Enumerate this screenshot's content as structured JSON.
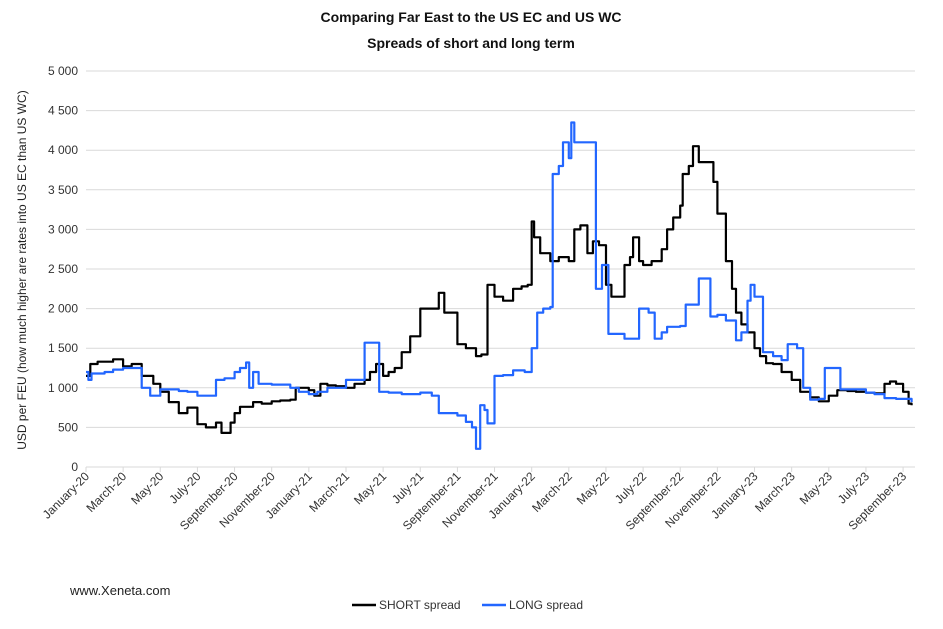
{
  "source": "www.Xeneta.com",
  "chart_data": {
    "type": "line",
    "title": [
      "Comparing Far East to the US EC and US WC",
      "Spreads of short and long term"
    ],
    "ylabel": "USD per FEU (how much higher are rates into US EC than US WC)",
    "xlabel": "",
    "ylim": [
      0,
      5000
    ],
    "yticks": [
      0,
      500,
      1000,
      1500,
      2000,
      2500,
      3000,
      3500,
      4000,
      4500,
      5000
    ],
    "ytick_labels": [
      "0",
      "500",
      "1 000",
      "1 500",
      "2 000",
      "2 500",
      "3 000",
      "3 500",
      "4 000",
      "4 500",
      "5 000"
    ],
    "xtick_labels": [
      "January-20",
      "March-20",
      "May-20",
      "July-20",
      "September-20",
      "November-20",
      "January-21",
      "March-21",
      "May-21",
      "July-21",
      "September-21",
      "November-21",
      "January-22",
      "March-22",
      "May-22",
      "July-22",
      "September-22",
      "November-22",
      "January-23",
      "March-23",
      "May-23",
      "July-23",
      "September-23"
    ],
    "xtick_dates": [
      "2020-01-01",
      "2020-03-01",
      "2020-05-01",
      "2020-07-01",
      "2020-09-01",
      "2020-11-01",
      "2021-01-01",
      "2021-03-01",
      "2021-05-01",
      "2021-07-01",
      "2021-09-01",
      "2021-11-01",
      "2022-01-01",
      "2022-03-01",
      "2022-05-01",
      "2022-07-01",
      "2022-09-01",
      "2022-11-01",
      "2023-01-01",
      "2023-03-01",
      "2023-05-01",
      "2023-07-01",
      "2023-09-01"
    ],
    "grid": true,
    "legend": "bottom",
    "series": [
      {
        "name": "SHORT spread",
        "color": "#000000",
        "points": [
          [
            "2020-01-01",
            1150
          ],
          [
            "2020-01-08",
            1300
          ],
          [
            "2020-01-20",
            1330
          ],
          [
            "2020-02-15",
            1360
          ],
          [
            "2020-03-01",
            1270
          ],
          [
            "2020-03-15",
            1300
          ],
          [
            "2020-04-01",
            1150
          ],
          [
            "2020-04-20",
            1050
          ],
          [
            "2020-05-01",
            950
          ],
          [
            "2020-05-15",
            820
          ],
          [
            "2020-06-01",
            680
          ],
          [
            "2020-06-15",
            750
          ],
          [
            "2020-07-01",
            540
          ],
          [
            "2020-07-15",
            500
          ],
          [
            "2020-08-01",
            560
          ],
          [
            "2020-08-10",
            430
          ],
          [
            "2020-08-25",
            560
          ],
          [
            "2020-09-01",
            680
          ],
          [
            "2020-09-10",
            760
          ],
          [
            "2020-10-01",
            820
          ],
          [
            "2020-10-15",
            800
          ],
          [
            "2020-11-01",
            830
          ],
          [
            "2020-11-15",
            840
          ],
          [
            "2020-12-01",
            850
          ],
          [
            "2020-12-10",
            1000
          ],
          [
            "2021-01-01",
            970
          ],
          [
            "2021-01-10",
            900
          ],
          [
            "2021-01-20",
            1050
          ],
          [
            "2021-02-01",
            1030
          ],
          [
            "2021-02-15",
            1020
          ],
          [
            "2021-03-01",
            1000
          ],
          [
            "2021-03-15",
            1050
          ],
          [
            "2021-04-01",
            1100
          ],
          [
            "2021-04-10",
            1200
          ],
          [
            "2021-04-20",
            1300
          ],
          [
            "2021-05-01",
            1150
          ],
          [
            "2021-05-10",
            1200
          ],
          [
            "2021-05-20",
            1250
          ],
          [
            "2021-06-01",
            1450
          ],
          [
            "2021-06-15",
            1650
          ],
          [
            "2021-07-01",
            2000
          ],
          [
            "2021-07-15",
            2000
          ],
          [
            "2021-08-01",
            2200
          ],
          [
            "2021-08-10",
            1950
          ],
          [
            "2021-08-20",
            1950
          ],
          [
            "2021-09-01",
            1550
          ],
          [
            "2021-09-15",
            1500
          ],
          [
            "2021-10-01",
            1400
          ],
          [
            "2021-10-10",
            1420
          ],
          [
            "2021-10-20",
            2300
          ],
          [
            "2021-11-01",
            2150
          ],
          [
            "2021-11-15",
            2100
          ],
          [
            "2021-12-01",
            2250
          ],
          [
            "2021-12-15",
            2280
          ],
          [
            "2021-12-25",
            2300
          ],
          [
            "2022-01-01",
            3100
          ],
          [
            "2022-01-05",
            2900
          ],
          [
            "2022-01-15",
            2700
          ],
          [
            "2022-02-01",
            2600
          ],
          [
            "2022-02-15",
            2650
          ],
          [
            "2022-03-01",
            2600
          ],
          [
            "2022-03-10",
            3000
          ],
          [
            "2022-03-20",
            3050
          ],
          [
            "2022-04-01",
            2700
          ],
          [
            "2022-04-10",
            2850
          ],
          [
            "2022-04-20",
            2800
          ],
          [
            "2022-05-01",
            2300
          ],
          [
            "2022-05-10",
            2150
          ],
          [
            "2022-05-20",
            2150
          ],
          [
            "2022-06-01",
            2550
          ],
          [
            "2022-06-10",
            2650
          ],
          [
            "2022-06-15",
            2900
          ],
          [
            "2022-06-25",
            2600
          ],
          [
            "2022-07-01",
            2550
          ],
          [
            "2022-07-15",
            2600
          ],
          [
            "2022-08-01",
            2750
          ],
          [
            "2022-08-10",
            3000
          ],
          [
            "2022-08-20",
            3150
          ],
          [
            "2022-09-01",
            3300
          ],
          [
            "2022-09-05",
            3700
          ],
          [
            "2022-09-15",
            3800
          ],
          [
            "2022-09-22",
            4050
          ],
          [
            "2022-10-01",
            3850
          ],
          [
            "2022-10-15",
            3850
          ],
          [
            "2022-10-25",
            3600
          ],
          [
            "2022-11-01",
            3200
          ],
          [
            "2022-11-15",
            2600
          ],
          [
            "2022-11-25",
            2250
          ],
          [
            "2022-12-01",
            1950
          ],
          [
            "2022-12-10",
            1800
          ],
          [
            "2022-12-20",
            1700
          ],
          [
            "2023-01-01",
            1500
          ],
          [
            "2023-01-10",
            1400
          ],
          [
            "2023-01-20",
            1310
          ],
          [
            "2023-02-01",
            1300
          ],
          [
            "2023-02-15",
            1200
          ],
          [
            "2023-03-01",
            1100
          ],
          [
            "2023-03-15",
            950
          ],
          [
            "2023-04-01",
            880
          ],
          [
            "2023-04-15",
            830
          ],
          [
            "2023-05-01",
            900
          ],
          [
            "2023-05-15",
            970
          ],
          [
            "2023-06-01",
            960
          ],
          [
            "2023-06-15",
            950
          ],
          [
            "2023-07-01",
            940
          ],
          [
            "2023-07-15",
            930
          ],
          [
            "2023-08-01",
            1050
          ],
          [
            "2023-08-10",
            1080
          ],
          [
            "2023-08-20",
            1050
          ],
          [
            "2023-09-01",
            950
          ],
          [
            "2023-09-10",
            800
          ],
          [
            "2023-09-15",
            780
          ]
        ]
      },
      {
        "name": "LONG spread",
        "color": "#2266ff",
        "points": [
          [
            "2020-01-01",
            1200
          ],
          [
            "2020-01-05",
            1100
          ],
          [
            "2020-01-10",
            1180
          ],
          [
            "2020-02-01",
            1200
          ],
          [
            "2020-02-15",
            1230
          ],
          [
            "2020-03-01",
            1250
          ],
          [
            "2020-04-01",
            1000
          ],
          [
            "2020-04-15",
            900
          ],
          [
            "2020-05-01",
            980
          ],
          [
            "2020-06-01",
            960
          ],
          [
            "2020-06-15",
            950
          ],
          [
            "2020-07-01",
            900
          ],
          [
            "2020-07-15",
            900
          ],
          [
            "2020-08-01",
            1100
          ],
          [
            "2020-08-15",
            1120
          ],
          [
            "2020-09-01",
            1200
          ],
          [
            "2020-09-10",
            1250
          ],
          [
            "2020-09-20",
            1320
          ],
          [
            "2020-09-25",
            1000
          ],
          [
            "2020-10-01",
            1200
          ],
          [
            "2020-10-10",
            1050
          ],
          [
            "2020-11-01",
            1040
          ],
          [
            "2020-12-01",
            1000
          ],
          [
            "2020-12-15",
            950
          ],
          [
            "2021-01-01",
            920
          ],
          [
            "2021-01-15",
            950
          ],
          [
            "2021-02-01",
            1000
          ],
          [
            "2021-03-01",
            1100
          ],
          [
            "2021-03-15",
            1100
          ],
          [
            "2021-04-01",
            1570
          ],
          [
            "2021-04-25",
            950
          ],
          [
            "2021-05-10",
            940
          ],
          [
            "2021-06-01",
            920
          ],
          [
            "2021-07-01",
            940
          ],
          [
            "2021-07-20",
            900
          ],
          [
            "2021-08-01",
            680
          ],
          [
            "2021-09-01",
            650
          ],
          [
            "2021-09-15",
            570
          ],
          [
            "2021-09-25",
            500
          ],
          [
            "2021-10-01",
            230
          ],
          [
            "2021-10-08",
            780
          ],
          [
            "2021-10-15",
            720
          ],
          [
            "2021-10-20",
            550
          ],
          [
            "2021-11-01",
            1150
          ],
          [
            "2021-11-15",
            1160
          ],
          [
            "2021-12-01",
            1220
          ],
          [
            "2021-12-20",
            1200
          ],
          [
            "2022-01-01",
            1500
          ],
          [
            "2022-01-10",
            1950
          ],
          [
            "2022-01-20",
            2000
          ],
          [
            "2022-02-01",
            2020
          ],
          [
            "2022-02-05",
            3700
          ],
          [
            "2022-02-15",
            3800
          ],
          [
            "2022-02-22",
            4100
          ],
          [
            "2022-03-01",
            3900
          ],
          [
            "2022-03-05",
            4350
          ],
          [
            "2022-03-10",
            4100
          ],
          [
            "2022-04-01",
            4100
          ],
          [
            "2022-04-15",
            2250
          ],
          [
            "2022-04-25",
            2550
          ],
          [
            "2022-05-05",
            1680
          ],
          [
            "2022-05-20",
            1680
          ],
          [
            "2022-06-01",
            1620
          ],
          [
            "2022-06-15",
            1620
          ],
          [
            "2022-06-25",
            2000
          ],
          [
            "2022-07-10",
            1950
          ],
          [
            "2022-07-20",
            1620
          ],
          [
            "2022-08-01",
            1700
          ],
          [
            "2022-08-10",
            1770
          ],
          [
            "2022-09-01",
            1780
          ],
          [
            "2022-09-10",
            2050
          ],
          [
            "2022-10-01",
            2380
          ],
          [
            "2022-10-10",
            2380
          ],
          [
            "2022-10-20",
            1900
          ],
          [
            "2022-11-01",
            1920
          ],
          [
            "2022-11-15",
            1850
          ],
          [
            "2022-12-01",
            1600
          ],
          [
            "2022-12-10",
            1700
          ],
          [
            "2022-12-20",
            2100
          ],
          [
            "2022-12-25",
            2300
          ],
          [
            "2023-01-01",
            2150
          ],
          [
            "2023-01-15",
            1450
          ],
          [
            "2023-02-01",
            1400
          ],
          [
            "2023-02-15",
            1350
          ],
          [
            "2023-02-25",
            1550
          ],
          [
            "2023-03-10",
            1500
          ],
          [
            "2023-03-20",
            1000
          ],
          [
            "2023-04-01",
            850
          ],
          [
            "2023-04-15",
            860
          ],
          [
            "2023-04-25",
            1250
          ],
          [
            "2023-05-15",
            1250
          ],
          [
            "2023-05-20",
            980
          ],
          [
            "2023-06-01",
            980
          ],
          [
            "2023-07-01",
            940
          ],
          [
            "2023-07-15",
            920
          ],
          [
            "2023-08-01",
            870
          ],
          [
            "2023-08-20",
            860
          ],
          [
            "2023-09-01",
            860
          ],
          [
            "2023-09-15",
            820
          ]
        ]
      }
    ]
  }
}
